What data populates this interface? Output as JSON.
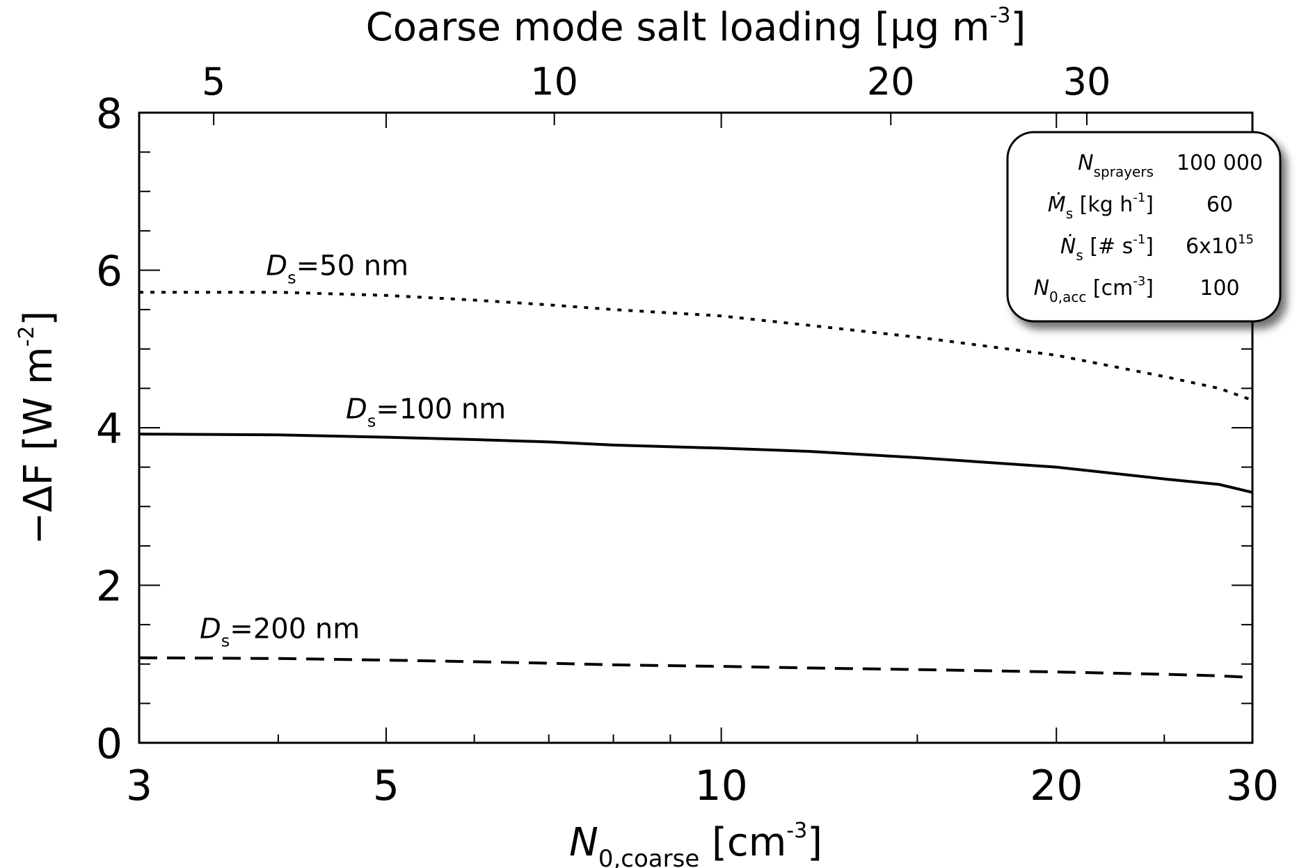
{
  "chart_data": {
    "type": "line",
    "x_scale": "log",
    "x_ticks": [
      3,
      5,
      10,
      20,
      30
    ],
    "xlim": [
      3,
      30
    ],
    "ylim": [
      0,
      8
    ],
    "y_ticks": [
      0,
      2,
      4,
      6,
      8
    ],
    "grid": false,
    "xlabel": {
      "main": "N",
      "sub": "0,coarse",
      "unit": " [cm",
      "unit_sup": "-3",
      "unit_close": "]"
    },
    "ylabel": {
      "main": "−ΔF [W m",
      "sup": "-2",
      "close": "]"
    },
    "top_axis": {
      "label": {
        "main": "Coarse mode salt loading [μg m",
        "sup": "-3",
        "close": "]"
      },
      "ticks": [
        {
          "label": "5",
          "x_at": 3.5
        },
        {
          "label": "10",
          "x_at": 7.08
        },
        {
          "label": "20",
          "x_at": 14.2
        },
        {
          "label": "30",
          "x_at": 21.3
        }
      ]
    },
    "series": [
      {
        "style": "dotted",
        "label": {
          "main": "D",
          "sub": "s",
          "rest": "=50 nm"
        },
        "x": [
          3,
          4,
          5,
          6,
          7,
          8,
          10,
          12,
          15,
          20,
          25,
          28,
          30
        ],
        "y": [
          5.72,
          5.72,
          5.68,
          5.62,
          5.56,
          5.5,
          5.42,
          5.3,
          5.15,
          4.92,
          4.65,
          4.5,
          4.35
        ]
      },
      {
        "style": "solid",
        "label": {
          "main": "D",
          "sub": "s",
          "rest": "=100 nm"
        },
        "x": [
          3,
          4,
          5,
          6,
          7,
          8,
          10,
          12,
          15,
          20,
          25,
          28,
          30
        ],
        "y": [
          3.92,
          3.91,
          3.88,
          3.85,
          3.82,
          3.78,
          3.74,
          3.7,
          3.62,
          3.5,
          3.35,
          3.28,
          3.18
        ]
      },
      {
        "style": "dashed",
        "label": {
          "main": "D",
          "sub": "s",
          "rest": "=200 nm"
        },
        "x": [
          3,
          4,
          5,
          6,
          7,
          8,
          10,
          12,
          15,
          20,
          25,
          28,
          30
        ],
        "y": [
          1.08,
          1.07,
          1.05,
          1.03,
          1.01,
          0.99,
          0.97,
          0.95,
          0.93,
          0.9,
          0.87,
          0.85,
          0.83
        ]
      }
    ],
    "legend_box": {
      "placement": "top-right",
      "rows": [
        {
          "param_main": "N",
          "param_sub": "sprayers",
          "param_unit": "",
          "param_unit_sup": "",
          "param_unit_close": "",
          "value_main": "100 000",
          "value_sup": ""
        },
        {
          "param_main": "Ṁ",
          "param_sub": "s",
          "param_unit": " [kg h",
          "param_unit_sup": "-1",
          "param_unit_close": "]",
          "value_main": "60",
          "value_sup": ""
        },
        {
          "param_main": "Ṅ",
          "param_sub": "s",
          "param_unit": " [# s",
          "param_unit_sup": "-1",
          "param_unit_close": "]",
          "value_main": "6x10",
          "value_sup": "15"
        },
        {
          "param_main": "N",
          "param_sub": "0,acc",
          "param_unit": " [cm",
          "param_unit_sup": "-3",
          "param_unit_close": "]",
          "value_main": "100",
          "value_sup": ""
        }
      ]
    }
  }
}
